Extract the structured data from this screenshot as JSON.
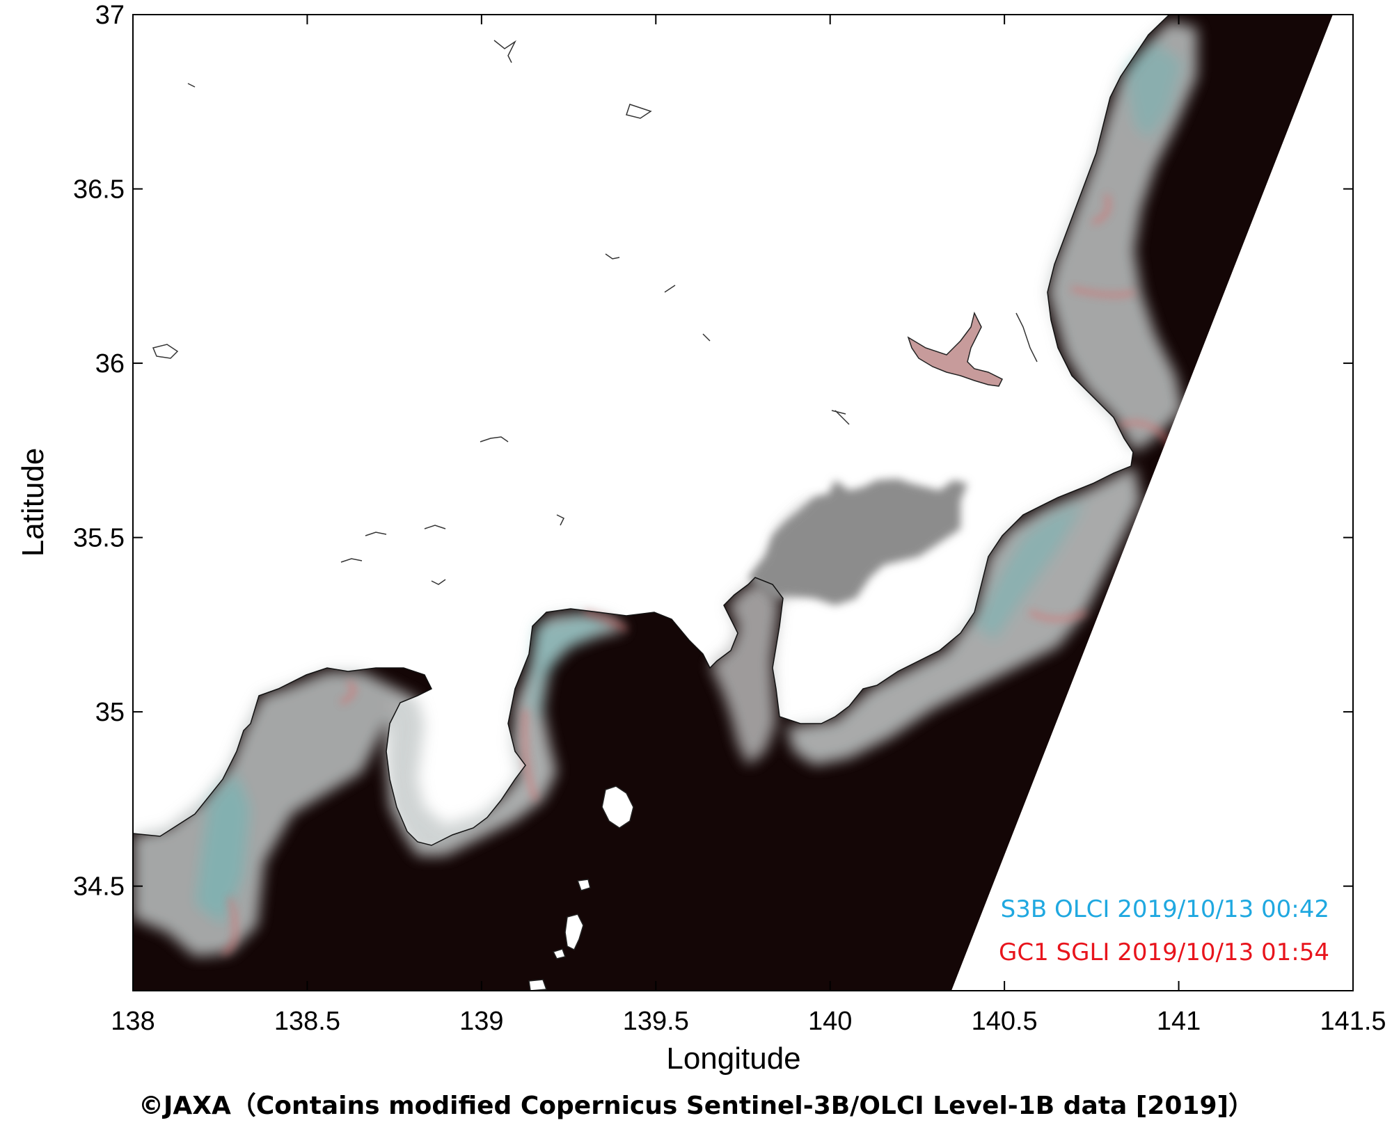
{
  "map": {
    "x_axis": {
      "label": "Longitude",
      "range": [
        138,
        141.5
      ],
      "ticks": [
        {
          "value": 138,
          "label": "138"
        },
        {
          "value": 138.5,
          "label": "138.5"
        },
        {
          "value": 139,
          "label": "139"
        },
        {
          "value": 139.5,
          "label": "139.5"
        },
        {
          "value": 140,
          "label": "140"
        },
        {
          "value": 140.5,
          "label": "140.5"
        },
        {
          "value": 141,
          "label": "141"
        },
        {
          "value": 141.5,
          "label": "141.5"
        }
      ]
    },
    "y_axis": {
      "label": "Latitude",
      "range": [
        34.2,
        37
      ],
      "ticks": [
        {
          "value": 34.5,
          "label": "34.5"
        },
        {
          "value": 35,
          "label": "35"
        },
        {
          "value": 35.5,
          "label": "35.5"
        },
        {
          "value": 36,
          "label": "36"
        },
        {
          "value": 36.5,
          "label": "36.5"
        },
        {
          "value": 37,
          "label": "37"
        }
      ]
    },
    "legend": {
      "placement": "bottom-right",
      "entries": [
        {
          "text": "S3B OLCI 2019/10/13 00:42",
          "color": "#1fa8e0"
        },
        {
          "text": "GC1 SGLI 2019/10/13 01:54",
          "color": "#e8141c"
        }
      ]
    },
    "colors": {
      "land": "#ffffff",
      "ocean": "#140606",
      "cyan_plume": "#7fd8d8",
      "red_plume": "#e06b6b",
      "grey_plume": "#b8b8b8"
    }
  },
  "credit": "©JAXA（Contains modified Copernicus Sentinel-3B/OLCI Level-1B data [2019]）"
}
